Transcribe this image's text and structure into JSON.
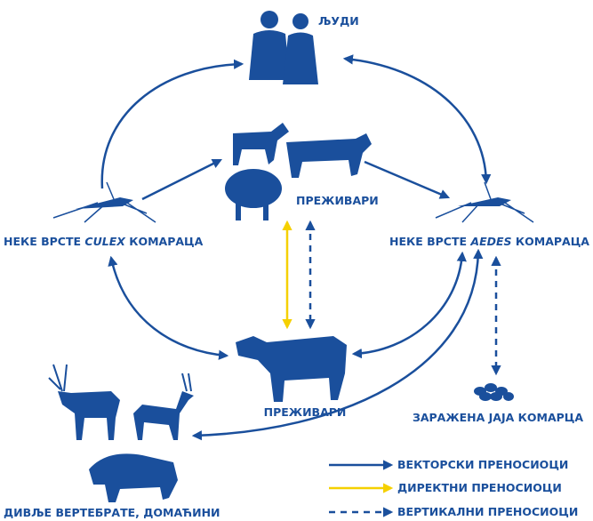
{
  "nodes": {
    "humans": {
      "label": "ЉУДИ"
    },
    "ruminants_top": {
      "label": "ПРЕЖИВАРИ"
    },
    "culex": {
      "label_prefix": "НЕКЕ ВРСТЕ",
      "label_genus": "CULEX",
      "label_suffix": "КОМАРАЦА"
    },
    "aedes": {
      "label_prefix": "НЕКЕ ВРСТЕ",
      "label_genus": "AEDES",
      "label_suffix": "КОМАРАЦА"
    },
    "ruminants_bottom": {
      "label": "ПРЕЖИВАРИ"
    },
    "eggs": {
      "label": "ЗАРАЖЕНА ЈАЈА КОМАРЦА"
    },
    "wild": {
      "label": "ДИВЉЕ ВЕРТЕБРАТЕ, ДОМАЋИНИ"
    }
  },
  "legend": [
    "ВЕКТОРСКИ ПРЕНОСИОЦИ",
    "ДИРЕКТНИ ПРЕНОСИОЦИ",
    "ВЕРТИКАЛНИ ПРЕНОСИОЦИ"
  ]
}
